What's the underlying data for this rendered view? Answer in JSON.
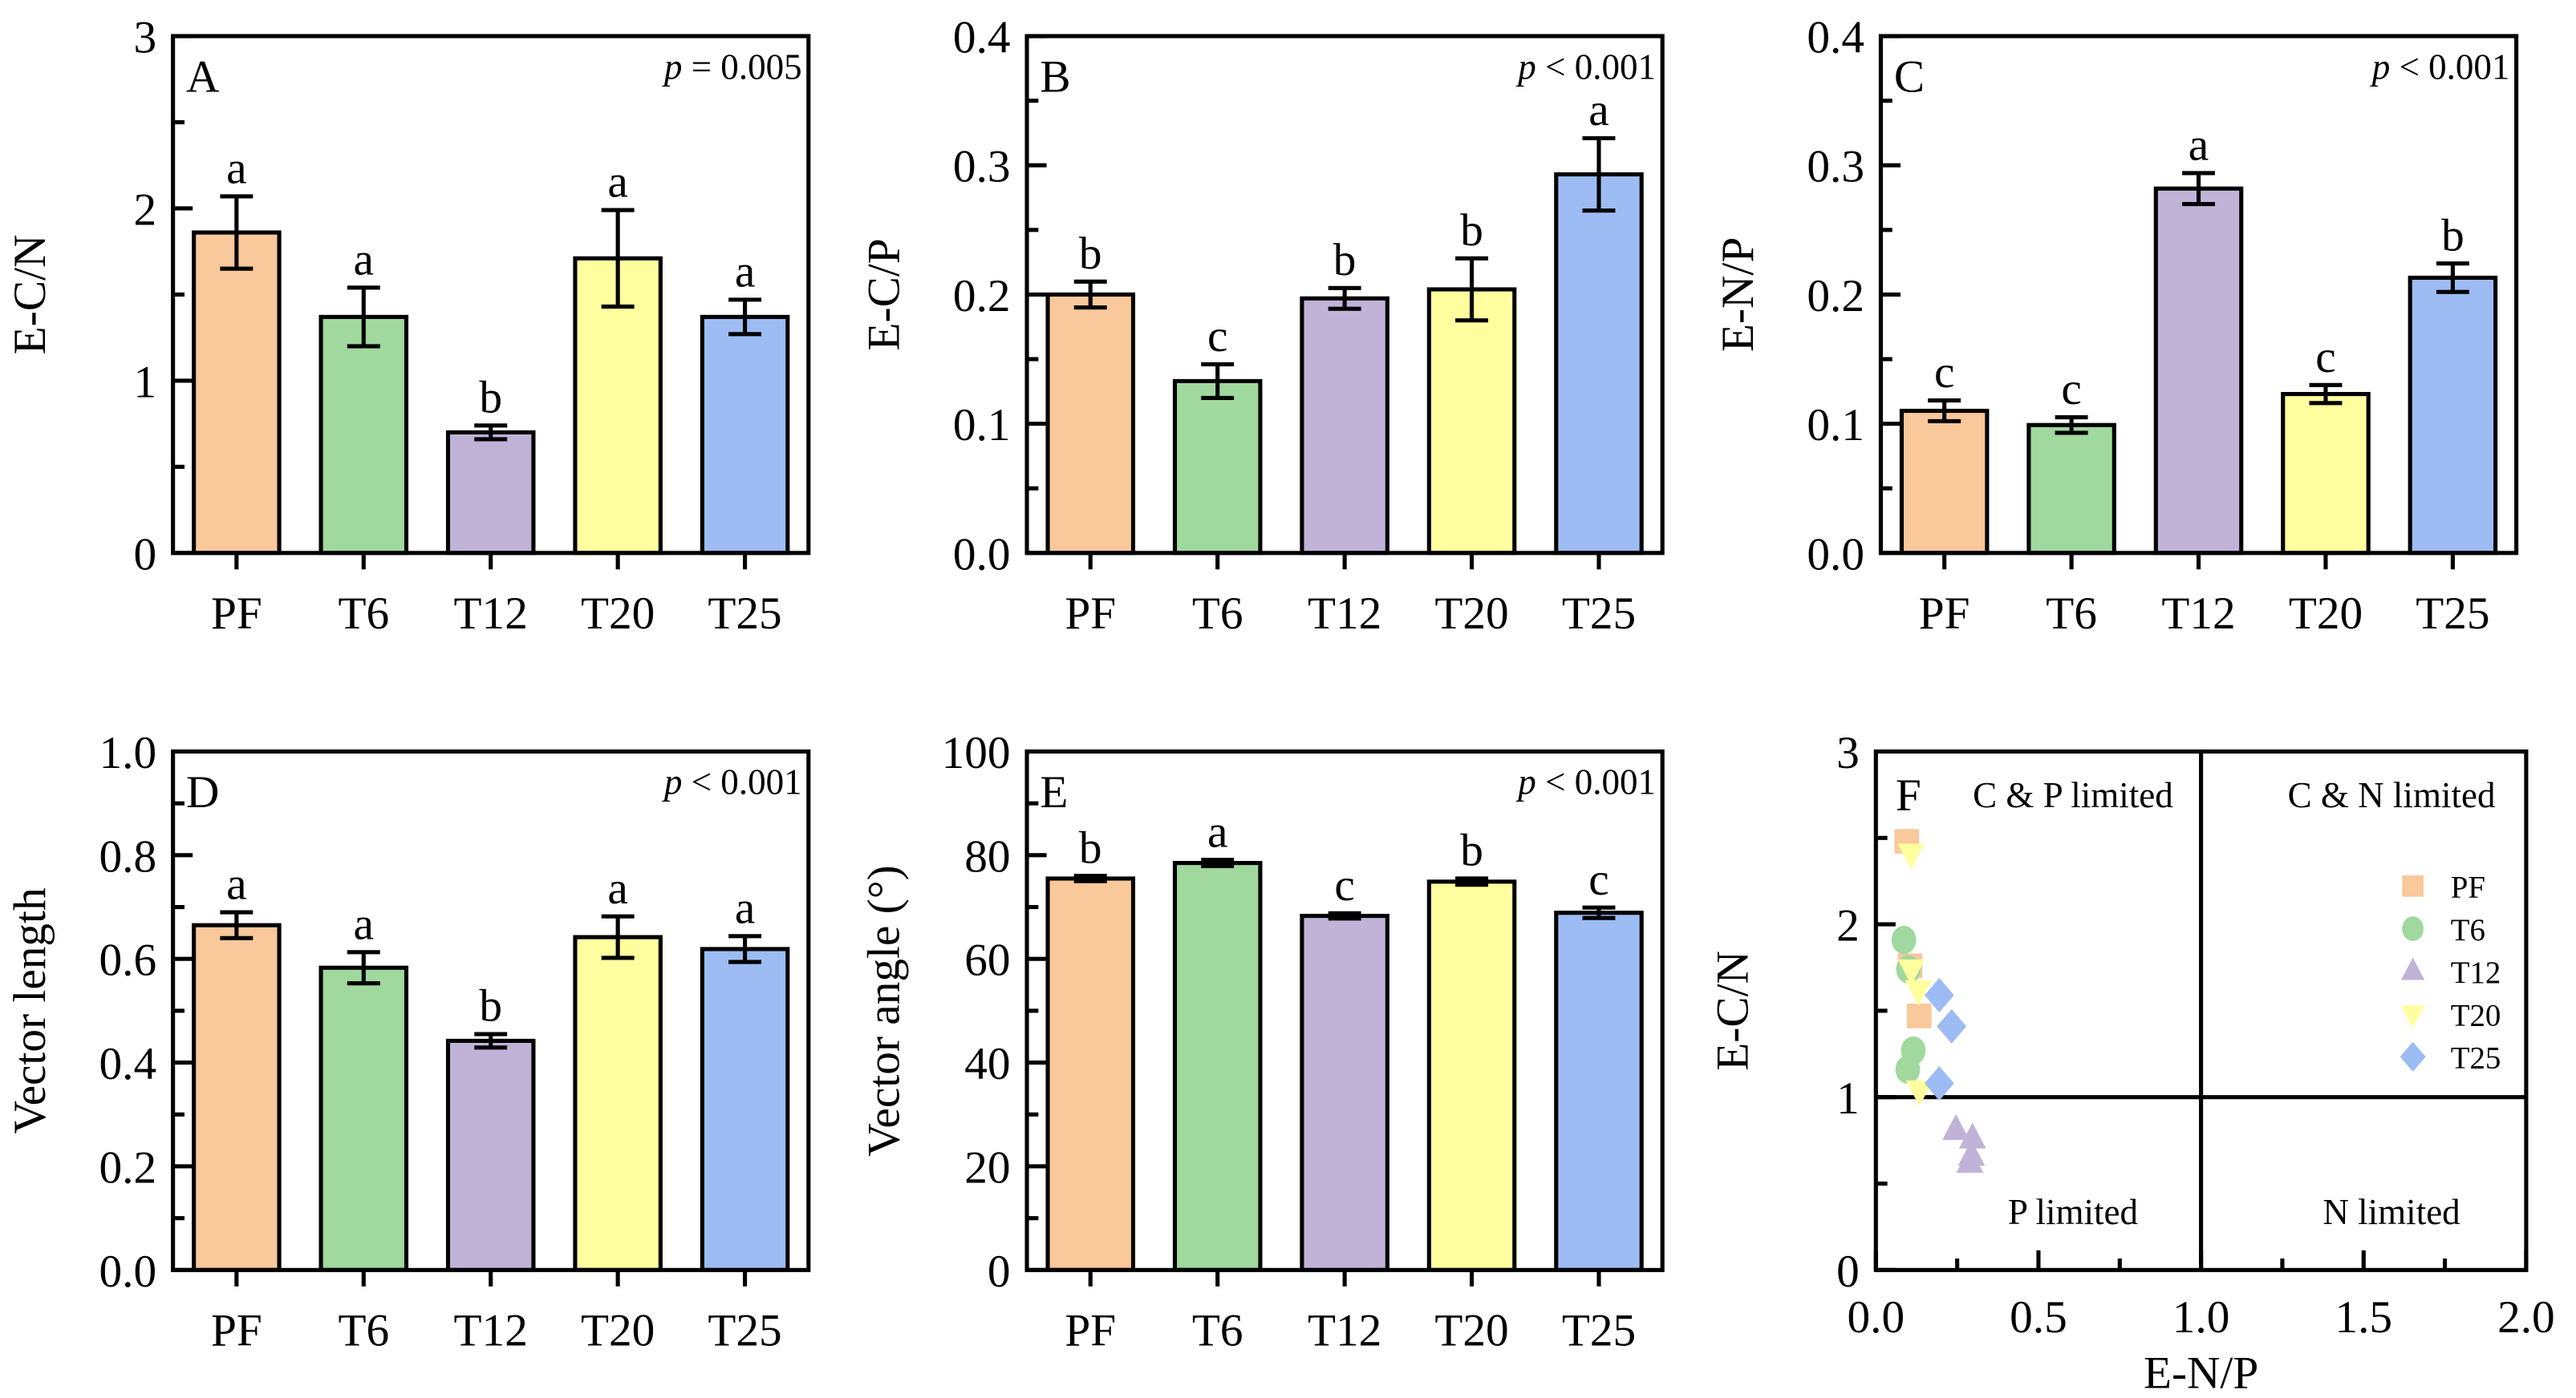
{
  "colors": {
    "PF": "#F9C89B",
    "T6": "#A0D89E",
    "T12": "#C1B3D7",
    "T20": "#FFFF9F",
    "T25": "#9DBCF3"
  },
  "chart_data": [
    {
      "type": "bar",
      "panel": "A",
      "ylabel": "E-C/N",
      "ylim": [
        0,
        3
      ],
      "yticks": [
        "0",
        "1",
        "2",
        "3"
      ],
      "ytick_values": [
        0,
        1,
        2,
        3
      ],
      "minor_step": 0.5,
      "p_label": "p",
      "p_text": "= 0.005",
      "categories": [
        "PF",
        "T6",
        "T12",
        "T20",
        "T25"
      ],
      "values": [
        1.86,
        1.37,
        0.7,
        1.71,
        1.37
      ],
      "errors": [
        0.21,
        0.17,
        0.04,
        0.28,
        0.1
      ],
      "letters": [
        "a",
        "a",
        "b",
        "a",
        "a"
      ]
    },
    {
      "type": "bar",
      "panel": "B",
      "ylabel": "E-C/P",
      "ylim": [
        0,
        0.4
      ],
      "yticks": [
        "0.0",
        "0.1",
        "0.2",
        "0.3",
        "0.4"
      ],
      "ytick_values": [
        0,
        0.1,
        0.2,
        0.3,
        0.4
      ],
      "minor_step": 0.05,
      "p_label": "p",
      "p_text": "< 0.001",
      "categories": [
        "PF",
        "T6",
        "T12",
        "T20",
        "T25"
      ],
      "values": [
        0.2,
        0.133,
        0.197,
        0.204,
        0.293
      ],
      "errors": [
        0.01,
        0.013,
        0.008,
        0.024,
        0.028
      ],
      "letters": [
        "b",
        "c",
        "b",
        "b",
        "a"
      ]
    },
    {
      "type": "bar",
      "panel": "C",
      "ylabel": "E-N/P",
      "ylim": [
        0,
        0.4
      ],
      "yticks": [
        "0.0",
        "0.1",
        "0.2",
        "0.3",
        "0.4"
      ],
      "ytick_values": [
        0,
        0.1,
        0.2,
        0.3,
        0.4
      ],
      "minor_step": 0.05,
      "p_label": "p",
      "p_text": "< 0.001",
      "categories": [
        "PF",
        "T6",
        "T12",
        "T20",
        "T25"
      ],
      "values": [
        0.11,
        0.099,
        0.282,
        0.123,
        0.213
      ],
      "errors": [
        0.008,
        0.006,
        0.012,
        0.007,
        0.011
      ],
      "letters": [
        "c",
        "c",
        "a",
        "c",
        "b"
      ]
    },
    {
      "type": "bar",
      "panel": "D",
      "ylabel": "Vector length",
      "ylim": [
        0,
        1.0
      ],
      "yticks": [
        "0.0",
        "0.2",
        "0.4",
        "0.6",
        "0.8",
        "1.0"
      ],
      "ytick_values": [
        0,
        0.2,
        0.4,
        0.6,
        0.8,
        1.0
      ],
      "minor_step": 0.1,
      "p_label": "p",
      "p_text": "< 0.001",
      "categories": [
        "PF",
        "T6",
        "T12",
        "T20",
        "T25"
      ],
      "values": [
        0.665,
        0.583,
        0.442,
        0.642,
        0.619
      ],
      "errors": [
        0.025,
        0.03,
        0.013,
        0.04,
        0.025
      ],
      "letters": [
        "a",
        "a",
        "b",
        "a",
        "a"
      ]
    },
    {
      "type": "bar",
      "panel": "E",
      "ylabel": "Vector angle (°)",
      "ylim": [
        0,
        100
      ],
      "yticks": [
        "0",
        "20",
        "40",
        "60",
        "80",
        "100"
      ],
      "ytick_values": [
        0,
        20,
        40,
        60,
        80,
        100
      ],
      "minor_step": 10,
      "p_label": "p",
      "p_text": "< 0.001",
      "categories": [
        "PF",
        "T6",
        "T12",
        "T20",
        "T25"
      ],
      "values": [
        75.5,
        78.5,
        68.3,
        74.9,
        68.9
      ],
      "errors": [
        0.5,
        0.6,
        0.5,
        0.6,
        1.0
      ],
      "letters": [
        "b",
        "a",
        "c",
        "b",
        "c"
      ]
    },
    {
      "type": "scatter",
      "panel": "F",
      "xlabel": "E-N/P",
      "ylabel": "E-C/N",
      "xlim": [
        0,
        2
      ],
      "ylim": [
        0,
        3
      ],
      "xticks": [
        "0.0",
        "0.5",
        "1.0",
        "1.5",
        "2.0"
      ],
      "xtick_values": [
        0,
        0.5,
        1,
        1.5,
        2
      ],
      "yticks": [
        "0",
        "1",
        "2",
        "3"
      ],
      "ytick_values": [
        0,
        1,
        2,
        3
      ],
      "reference_lines": {
        "x": 1,
        "y": 1
      },
      "quadrants": {
        "top_left": "C & P limited",
        "top_right": "C & N limited",
        "bottom_left": "P limited",
        "bottom_right": "N limited"
      },
      "legend_position": "right",
      "series": [
        {
          "name": "PF",
          "marker": "square",
          "points": [
            [
              0.095,
              2.48
            ],
            [
              0.105,
              1.76
            ],
            [
              0.133,
              1.47
            ]
          ]
        },
        {
          "name": "T6",
          "marker": "circle",
          "points": [
            [
              0.086,
              1.91
            ],
            [
              0.1,
              1.74
            ],
            [
              0.115,
              1.27
            ],
            [
              0.098,
              1.16
            ]
          ]
        },
        {
          "name": "T12",
          "marker": "triangle-up",
          "points": [
            [
              0.246,
              0.81
            ],
            [
              0.297,
              0.76
            ],
            [
              0.294,
              0.66
            ],
            [
              0.289,
              0.62
            ]
          ]
        },
        {
          "name": "T20",
          "marker": "triangle-down",
          "points": [
            [
              0.108,
              2.41
            ],
            [
              0.109,
              1.74
            ],
            [
              0.131,
              1.62
            ],
            [
              0.134,
              1.04
            ]
          ]
        },
        {
          "name": "T25",
          "marker": "diamond",
          "points": [
            [
              0.195,
              1.59
            ],
            [
              0.233,
              1.41
            ],
            [
              0.195,
              1.08
            ]
          ]
        }
      ]
    }
  ]
}
